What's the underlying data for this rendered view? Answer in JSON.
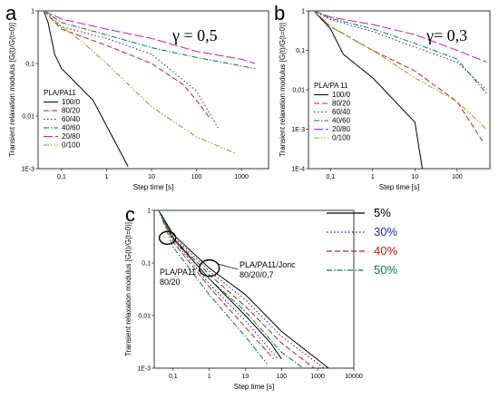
{
  "chart_data": [
    {
      "panel": "a",
      "type": "line",
      "gamma_label": "γ = 0,5",
      "xlabel": "Step time [s]",
      "ylabel": "Transient relaxation modulus [G(t)/G(t=0)]",
      "x_scale": "log",
      "y_scale": "log",
      "xlim": [
        0.03,
        4000
      ],
      "ylim": [
        0.001,
        1
      ],
      "x_ticks": [
        0.1,
        1,
        10,
        100,
        1000
      ],
      "x_tick_labels": [
        "0,1",
        "1",
        "10",
        "100",
        "1000"
      ],
      "y_ticks": [
        0.001,
        0.01,
        0.1,
        1
      ],
      "y_tick_labels": [
        "1E-3",
        "0,01",
        "0,1",
        "1"
      ],
      "legend_title": "PLA/PA11",
      "legend_position": "lower-left",
      "series": [
        {
          "name": "100/0",
          "color": "#000000",
          "dash": "solid",
          "points": [
            [
              0.04,
              1
            ],
            [
              0.05,
              0.6
            ],
            [
              0.07,
              0.15
            ],
            [
              0.1,
              0.08
            ],
            [
              0.5,
              0.02
            ],
            [
              3,
              0.0011
            ]
          ]
        },
        {
          "name": "80/20",
          "color": "#b5261e",
          "dash": "dash",
          "points": [
            [
              0.04,
              1
            ],
            [
              0.1,
              0.45
            ],
            [
              1,
              0.22
            ],
            [
              10,
              0.1
            ],
            [
              50,
              0.04
            ],
            [
              100,
              0.02
            ],
            [
              200,
              0.009
            ]
          ]
        },
        {
          "name": "60/40",
          "color": "#1f1fbf",
          "dash": "dot",
          "points": [
            [
              0.04,
              1
            ],
            [
              0.1,
              0.5
            ],
            [
              1,
              0.3
            ],
            [
              10,
              0.15
            ],
            [
              100,
              0.03
            ],
            [
              300,
              0.006
            ]
          ]
        },
        {
          "name": "40/60",
          "color": "#0b7a3a",
          "dash": "dashdot",
          "points": [
            [
              0.04,
              1
            ],
            [
              0.1,
              0.6
            ],
            [
              1,
              0.35
            ],
            [
              10,
              0.2
            ],
            [
              100,
              0.13
            ],
            [
              1000,
              0.09
            ],
            [
              2000,
              0.08
            ]
          ]
        },
        {
          "name": "20/80",
          "color": "#c21fc2",
          "dash": "longdash",
          "points": [
            [
              0.04,
              1
            ],
            [
              0.1,
              0.7
            ],
            [
              1,
              0.45
            ],
            [
              10,
              0.3
            ],
            [
              100,
              0.17
            ],
            [
              1000,
              0.12
            ],
            [
              2000,
              0.1
            ]
          ]
        },
        {
          "name": "0/100",
          "color": "#9a9a1a",
          "dash": "dashdotdot",
          "points": [
            [
              0.04,
              1
            ],
            [
              0.1,
              0.5
            ],
            [
              0.3,
              0.25
            ],
            [
              1,
              0.1
            ],
            [
              10,
              0.015
            ],
            [
              100,
              0.004
            ],
            [
              700,
              0.002
            ]
          ]
        }
      ]
    },
    {
      "panel": "b",
      "type": "line",
      "gamma_label": "γ= 0,3",
      "xlabel": "Step time [s]",
      "ylabel": "Transient relaxation modulus [G(t)/G(t=0)]",
      "x_scale": "log",
      "y_scale": "log",
      "xlim": [
        0.03,
        600
      ],
      "ylim": [
        0.0001,
        1
      ],
      "x_ticks": [
        0.1,
        1,
        10,
        100
      ],
      "x_tick_labels": [
        "0,1",
        "1",
        "10",
        "100"
      ],
      "y_ticks": [
        0.0001,
        0.001,
        0.01,
        0.1,
        1
      ],
      "y_tick_labels": [
        "1E-4",
        "1E-3",
        "0,01",
        "0,1",
        "1"
      ],
      "legend_title": "PLA/PA 11",
      "legend_position": "lower-left",
      "series": [
        {
          "name": "100/0",
          "color": "#000000",
          "dash": "solid",
          "points": [
            [
              0.04,
              1
            ],
            [
              0.1,
              0.35
            ],
            [
              0.2,
              0.08
            ],
            [
              1,
              0.02
            ],
            [
              10,
              0.0015
            ],
            [
              15,
              0.0001
            ]
          ]
        },
        {
          "name": "80/20",
          "color": "#b5261e",
          "dash": "dash",
          "points": [
            [
              0.04,
              1
            ],
            [
              0.1,
              0.4
            ],
            [
              1,
              0.1
            ],
            [
              10,
              0.03
            ],
            [
              100,
              0.005
            ],
            [
              400,
              0.0005
            ]
          ]
        },
        {
          "name": "60/40",
          "color": "#1f1fbf",
          "dash": "dot",
          "points": [
            [
              0.04,
              1
            ],
            [
              0.1,
              0.6
            ],
            [
              1,
              0.3
            ],
            [
              10,
              0.12
            ],
            [
              100,
              0.05
            ],
            [
              500,
              0.01
            ]
          ]
        },
        {
          "name": "40/60",
          "color": "#0b7a3a",
          "dash": "dashdot",
          "points": [
            [
              0.04,
              1
            ],
            [
              0.1,
              0.65
            ],
            [
              1,
              0.35
            ],
            [
              10,
              0.15
            ],
            [
              100,
              0.06
            ],
            [
              500,
              0.008
            ]
          ]
        },
        {
          "name": "20/80",
          "color": "#c21fc2",
          "dash": "longdash",
          "points": [
            [
              0.04,
              1
            ],
            [
              0.1,
              0.7
            ],
            [
              1,
              0.45
            ],
            [
              10,
              0.25
            ],
            [
              100,
              0.1
            ],
            [
              500,
              0.05
            ]
          ]
        },
        {
          "name": "0/100",
          "color": "#9a9a1a",
          "dash": "dashdotdot",
          "points": [
            [
              0.04,
              1
            ],
            [
              0.1,
              0.4
            ],
            [
              1,
              0.1
            ],
            [
              10,
              0.02
            ],
            [
              100,
              0.005
            ],
            [
              500,
              0.001
            ]
          ]
        }
      ]
    },
    {
      "panel": "c",
      "type": "line",
      "xlabel": "Step time [s]",
      "ylabel": "Transient relaxation modulus [G(t)/G(t=0)]",
      "x_scale": "log",
      "y_scale": "log",
      "xlim": [
        0.03,
        10000
      ],
      "ylim": [
        0.001,
        1
      ],
      "x_ticks": [
        0.1,
        1,
        10,
        100,
        1000,
        10000
      ],
      "x_tick_labels": [
        "0,1",
        "1",
        "10",
        "100",
        "1000",
        "10000"
      ],
      "y_ticks": [
        0.001,
        0.01,
        0.1,
        1
      ],
      "y_tick_labels": [
        "1E-3",
        "0,01",
        "0,1",
        "1"
      ],
      "legend_position": "right",
      "legend": [
        {
          "name": "5%",
          "color": "#000000",
          "dash": "solid"
        },
        {
          "name": "30%",
          "color": "#1f1fbf",
          "dash": "dot"
        },
        {
          "name": "40%",
          "color": "#b5261e",
          "dash": "dash"
        },
        {
          "name": "50%",
          "color": "#0b7a3a",
          "dash": "dashdot"
        }
      ],
      "annotations": [
        {
          "text": "PLA/PA11\n80/20",
          "x": 0.07,
          "y": 0.3
        },
        {
          "text": "PLA/PA11/Jonc\n80/20/0,7",
          "x": 1,
          "y": 0.08
        }
      ],
      "series": [
        {
          "group": "5%",
          "color": "#000000",
          "dash": "solid",
          "points": [
            [
              0.04,
              1
            ],
            [
              0.1,
              0.35
            ],
            [
              1,
              0.08
            ],
            [
              10,
              0.025
            ],
            [
              100,
              0.005
            ],
            [
              2000,
              0.001
            ]
          ]
        },
        {
          "group": "5%",
          "color": "#000000",
          "dash": "solid",
          "points": [
            [
              0.04,
              1
            ],
            [
              0.1,
              0.3
            ],
            [
              1,
              0.05
            ],
            [
              10,
              0.01
            ],
            [
              50,
              0.003
            ],
            [
              100,
              0.0015
            ]
          ]
        },
        {
          "group": "30%",
          "color": "#1f1fbf",
          "dash": "dot",
          "points": [
            [
              0.04,
              1
            ],
            [
              0.1,
              0.32
            ],
            [
              1,
              0.07
            ],
            [
              10,
              0.02
            ],
            [
              100,
              0.004
            ],
            [
              1500,
              0.001
            ]
          ]
        },
        {
          "group": "30%",
          "color": "#1f1fbf",
          "dash": "dot",
          "points": [
            [
              0.04,
              1
            ],
            [
              0.1,
              0.28
            ],
            [
              1,
              0.04
            ],
            [
              10,
              0.008
            ],
            [
              80,
              0.0015
            ]
          ]
        },
        {
          "group": "40%",
          "color": "#b5261e",
          "dash": "dash",
          "points": [
            [
              0.04,
              1
            ],
            [
              0.1,
              0.3
            ],
            [
              1,
              0.06
            ],
            [
              10,
              0.015
            ],
            [
              100,
              0.003
            ],
            [
              800,
              0.001
            ]
          ]
        },
        {
          "group": "40%",
          "color": "#b5261e",
          "dash": "dash",
          "points": [
            [
              0.04,
              1
            ],
            [
              0.1,
              0.25
            ],
            [
              1,
              0.035
            ],
            [
              10,
              0.006
            ],
            [
              60,
              0.0015
            ]
          ]
        },
        {
          "group": "50%",
          "color": "#0b7a3a",
          "dash": "dashdot",
          "points": [
            [
              0.04,
              1
            ],
            [
              0.1,
              0.28
            ],
            [
              1,
              0.05
            ],
            [
              10,
              0.012
            ],
            [
              100,
              0.002
            ],
            [
              400,
              0.001
            ]
          ]
        },
        {
          "group": "50%",
          "color": "#0b7a3a",
          "dash": "dashdot",
          "points": [
            [
              0.04,
              1
            ],
            [
              0.1,
              0.2
            ],
            [
              1,
              0.025
            ],
            [
              10,
              0.004
            ],
            [
              40,
              0.0012
            ]
          ]
        }
      ]
    }
  ],
  "panel_letters": [
    "a",
    "b",
    "c"
  ]
}
